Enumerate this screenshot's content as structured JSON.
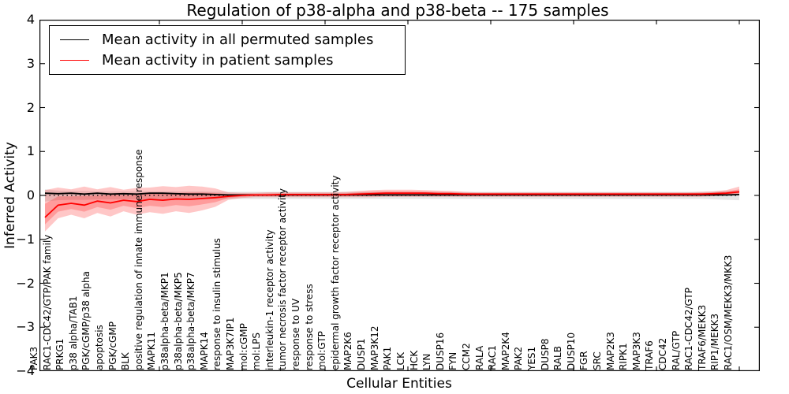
{
  "title": "Regulation of p38-alpha and p38-beta -- 175 samples",
  "legend": {
    "items": [
      {
        "label": "Mean activity in all permuted samples",
        "color": "#000000"
      },
      {
        "label": "Mean activity in patient samples",
        "color": "#ff0000"
      }
    ]
  },
  "axes": {
    "ylabel": "Inferred Activity",
    "xlabel": "Cellular Entities",
    "yticks": [
      4,
      3,
      2,
      1,
      0,
      -1,
      -2,
      -3,
      -4
    ]
  },
  "chart_data": {
    "type": "line",
    "title": "Regulation of p38-alpha and p38-beta -- 175 samples",
    "xlabel": "Cellular Entities",
    "ylabel": "Inferred Activity",
    "ylim": [
      -4,
      4
    ],
    "grid": false,
    "legend_position": "upper left",
    "zero_line": "dotted black at y=0",
    "categories": [
      "PAK3",
      "RAC1-CDC42/GTP/PAK family",
      "PRKG1",
      "p38 alpha/TAB1",
      "PGK/cGMP/p38 alpha",
      "apoptosis",
      "PGK/cGMP",
      "BLK",
      "positive regulation of innate immune response",
      "MAPK11",
      "p38alpha-beta/MKP1",
      "p38alpha-beta/MKP5",
      "p38alpha-beta/MKP7",
      "MAPK14",
      "response to insulin stimulus",
      "MAP3K7IP1",
      "mol:cGMP",
      "mol:LPS",
      "interleukin-1 receptor activity",
      "tumor necrosis factor receptor activity",
      "response to UV",
      "response to stress",
      "mol:GTP",
      "epidermal growth factor receptor activity",
      "MAP2K6",
      "DUSP1",
      "MAP3K12",
      "PAK1",
      "LCK",
      "HCK",
      "LYN",
      "DUSP16",
      "FYN",
      "CCM2",
      "RALA",
      "RAC1",
      "MAP2K4",
      "PAK2",
      "YES1",
      "DUSP8",
      "RALB",
      "DUSP10",
      "FGR",
      "SRC",
      "MAP2K3",
      "RIPK1",
      "MAP3K3",
      "TRAF6",
      "CDC42",
      "RAL/GTP",
      "RAC1-CDC42/GTP",
      "TRAF6/MEKK3",
      "RIP1/MEKK3",
      "RAC1/OSM/MEKK3/MKK3"
    ],
    "series": [
      {
        "name": "Mean activity in all permuted samples",
        "color": "#000000",
        "style": "solid",
        "values": [
          0.05,
          0.04,
          0.05,
          0.03,
          0.05,
          0.03,
          0.04,
          0.03,
          0.05,
          0.05,
          0.04,
          0.03,
          0.03,
          0.02,
          0.01,
          0.01,
          0.01,
          0.01,
          0.01,
          0.01,
          0.01,
          0.01,
          0.01,
          0.01,
          0.01,
          0.01,
          0.01,
          0.01,
          0.01,
          0.01,
          0.01,
          0.01,
          0.01,
          0.01,
          0.01,
          0.01,
          0.01,
          0.01,
          0.01,
          0.01,
          0.01,
          0.01,
          0.01,
          0.01,
          0.01,
          0.01,
          0.01,
          0.01,
          0.01,
          0.01,
          0.01,
          0.01,
          0.01,
          0.02
        ]
      },
      {
        "name": "Mean activity in patient samples",
        "color": "#ff0000",
        "style": "solid",
        "values": [
          -0.5,
          -0.22,
          -0.18,
          -0.22,
          -0.13,
          -0.17,
          -0.11,
          -0.14,
          -0.09,
          -0.11,
          -0.08,
          -0.09,
          -0.07,
          -0.05,
          -0.02,
          0.0,
          0.01,
          0.01,
          0.02,
          0.02,
          0.02,
          0.02,
          0.02,
          0.02,
          0.03,
          0.04,
          0.05,
          0.05,
          0.05,
          0.05,
          0.04,
          0.04,
          0.03,
          0.03,
          0.03,
          0.03,
          0.03,
          0.03,
          0.03,
          0.03,
          0.03,
          0.03,
          0.03,
          0.03,
          0.03,
          0.03,
          0.03,
          0.03,
          0.03,
          0.03,
          0.03,
          0.04,
          0.05,
          0.08
        ]
      }
    ],
    "bands": [
      {
        "name": "permuted samples range",
        "color": "rgba(0,0,0,0.10)",
        "upper": [
          0.14,
          0.11,
          0.1,
          0.1,
          0.09,
          0.09,
          0.09,
          0.09,
          0.09,
          0.09,
          0.09,
          0.09,
          0.09,
          0.08,
          0.08,
          0.08,
          0.08,
          0.08,
          0.08,
          0.08,
          0.08,
          0.08,
          0.08,
          0.08,
          0.08,
          0.08,
          0.08,
          0.08,
          0.08,
          0.08,
          0.08,
          0.08,
          0.08,
          0.08,
          0.08,
          0.08,
          0.08,
          0.08,
          0.08,
          0.08,
          0.08,
          0.08,
          0.08,
          0.08,
          0.08,
          0.08,
          0.08,
          0.08,
          0.08,
          0.08,
          0.08,
          0.09,
          0.1,
          0.11
        ],
        "lower": [
          -0.14,
          -0.11,
          -0.1,
          -0.1,
          -0.09,
          -0.09,
          -0.09,
          -0.09,
          -0.09,
          -0.09,
          -0.09,
          -0.09,
          -0.09,
          -0.08,
          -0.08,
          -0.08,
          -0.08,
          -0.08,
          -0.08,
          -0.08,
          -0.08,
          -0.08,
          -0.08,
          -0.08,
          -0.08,
          -0.08,
          -0.08,
          -0.08,
          -0.08,
          -0.08,
          -0.08,
          -0.08,
          -0.08,
          -0.08,
          -0.08,
          -0.08,
          -0.08,
          -0.08,
          -0.08,
          -0.08,
          -0.08,
          -0.08,
          -0.08,
          -0.08,
          -0.08,
          -0.08,
          -0.08,
          -0.08,
          -0.08,
          -0.08,
          -0.08,
          -0.09,
          -0.1,
          -0.11
        ]
      },
      {
        "name": "patient samples range",
        "color": "rgba(255,0,0,0.22)",
        "upper": [
          0.12,
          0.18,
          0.14,
          0.2,
          0.14,
          0.19,
          0.13,
          0.17,
          0.18,
          0.21,
          0.19,
          0.22,
          0.2,
          0.16,
          0.07,
          0.06,
          0.06,
          0.07,
          0.07,
          0.07,
          0.07,
          0.07,
          0.07,
          0.08,
          0.1,
          0.12,
          0.13,
          0.13,
          0.13,
          0.12,
          0.11,
          0.1,
          0.08,
          0.07,
          0.07,
          0.07,
          0.07,
          0.07,
          0.07,
          0.07,
          0.07,
          0.07,
          0.07,
          0.07,
          0.07,
          0.07,
          0.07,
          0.07,
          0.07,
          0.07,
          0.08,
          0.09,
          0.12,
          0.2
        ],
        "lower": [
          -0.82,
          -0.52,
          -0.44,
          -0.52,
          -0.4,
          -0.48,
          -0.36,
          -0.44,
          -0.38,
          -0.42,
          -0.36,
          -0.4,
          -0.34,
          -0.26,
          -0.1,
          -0.06,
          -0.04,
          -0.04,
          -0.04,
          -0.04,
          -0.04,
          -0.04,
          -0.04,
          -0.04,
          -0.04,
          -0.04,
          -0.03,
          -0.03,
          -0.03,
          -0.03,
          -0.03,
          -0.03,
          -0.03,
          -0.03,
          -0.03,
          -0.03,
          -0.03,
          -0.03,
          -0.03,
          -0.03,
          -0.03,
          -0.03,
          -0.03,
          -0.03,
          -0.03,
          -0.03,
          -0.03,
          -0.03,
          -0.03,
          -0.03,
          -0.03,
          -0.02,
          0.0,
          0.02
        ]
      }
    ]
  }
}
